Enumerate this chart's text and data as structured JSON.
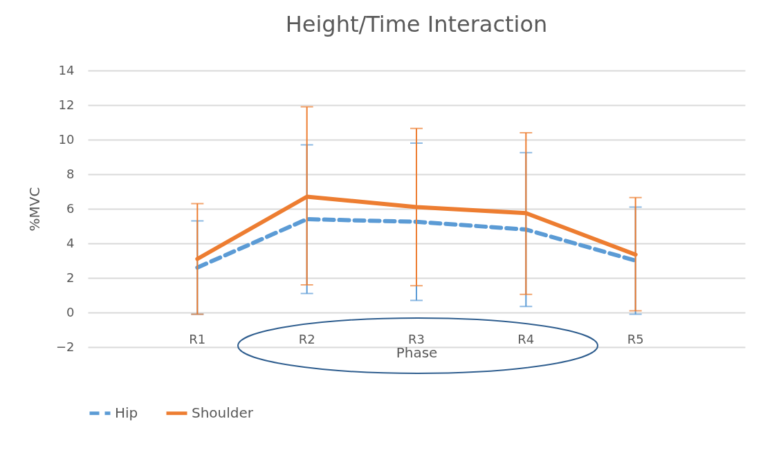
{
  "chart_data": {
    "type": "line",
    "title": "Height/Time Interaction",
    "xlabel": "Phase",
    "ylabel": "%MVC",
    "categories": [
      "R1",
      "R2",
      "R3",
      "R4",
      "R5"
    ],
    "series": [
      {
        "name": "Hip",
        "color": "#5b9bd5",
        "line_style": "dashed",
        "values": [
          2.6,
          5.4,
          5.25,
          4.8,
          3.0
        ],
        "errors": [
          [
            -0.1,
            5.3
          ],
          [
            1.1,
            9.7
          ],
          [
            0.7,
            9.8
          ],
          [
            0.35,
            9.25
          ],
          [
            -0.1,
            6.1
          ]
        ]
      },
      {
        "name": "Shoulder",
        "color": "#ed7d31",
        "line_style": "solid",
        "values": [
          3.1,
          6.7,
          6.1,
          5.75,
          3.35
        ],
        "errors": [
          [
            -0.1,
            6.3
          ],
          [
            1.6,
            11.9
          ],
          [
            1.55,
            10.65
          ],
          [
            1.05,
            10.4
          ],
          [
            0.1,
            6.65
          ]
        ]
      }
    ],
    "ylim": [
      -2,
      14
    ],
    "yticks": [
      -2,
      0,
      2,
      4,
      6,
      8,
      10,
      12,
      14
    ],
    "grid": "y",
    "legend": "bottom"
  }
}
